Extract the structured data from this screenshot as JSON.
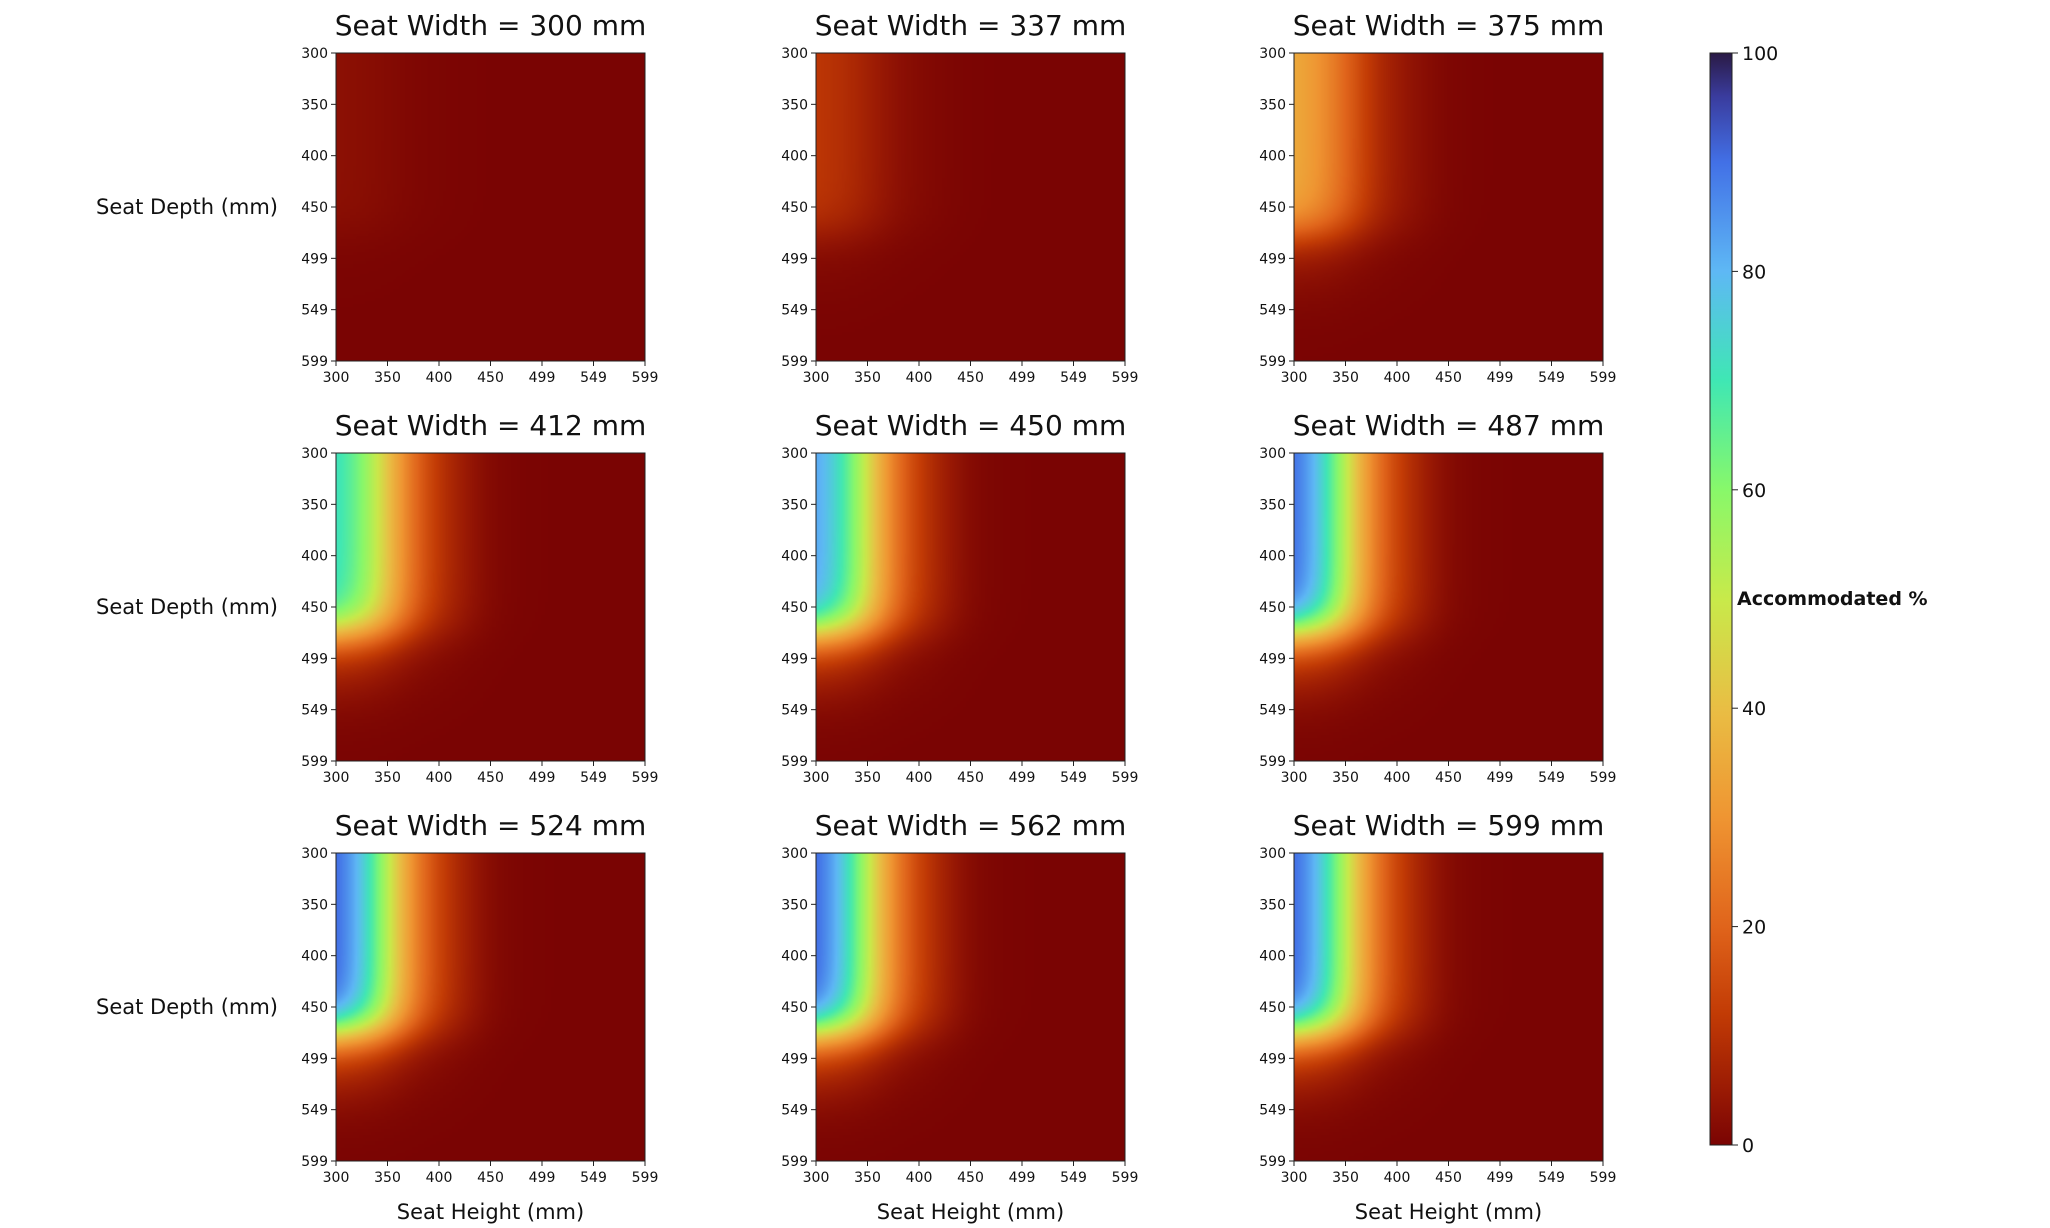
{
  "chart_data": {
    "type": "heatmap",
    "colormap": "turbo (reversed: 0 = dark red, 100 = dark navy)",
    "value_range": [
      0,
      100
    ],
    "x_label": "Seat Height (mm)",
    "y_label": "Seat Depth (mm)",
    "x_ticks": [
      "300",
      "350",
      "400",
      "450",
      "499",
      "549",
      "599"
    ],
    "y_ticks": [
      "300",
      "350",
      "400",
      "450",
      "499",
      "549",
      "599"
    ],
    "x_range": [
      300,
      599
    ],
    "y_range": [
      300,
      599
    ],
    "colorbar": {
      "label": "Accommodated %",
      "ticks": [
        "0",
        "20",
        "40",
        "60",
        "80",
        "100"
      ]
    },
    "panels": [
      {
        "title": "Seat Width = 300 mm",
        "peak": 3,
        "show_ylabel": true,
        "show_xlabel": false
      },
      {
        "title": "Seat Width = 337 mm",
        "peak": 12,
        "show_ylabel": false,
        "show_xlabel": false
      },
      {
        "title": "Seat Width = 375 mm",
        "peak": 38,
        "show_ylabel": false,
        "show_xlabel": false
      },
      {
        "title": "Seat Width = 412 mm",
        "peak": 78,
        "show_ylabel": true,
        "show_xlabel": false
      },
      {
        "title": "Seat Width = 450 mm",
        "peak": 90,
        "show_ylabel": false,
        "show_xlabel": false
      },
      {
        "title": "Seat Width = 487 mm",
        "peak": 98,
        "show_ylabel": false,
        "show_xlabel": false
      },
      {
        "title": "Seat Width = 524 mm",
        "peak": 99,
        "show_ylabel": true,
        "show_xlabel": true
      },
      {
        "title": "Seat Width = 562 mm",
        "peak": 99,
        "show_ylabel": false,
        "show_xlabel": true
      },
      {
        "title": "Seat Width = 599 mm",
        "peak": 99,
        "show_ylabel": false,
        "show_xlabel": true
      }
    ]
  }
}
